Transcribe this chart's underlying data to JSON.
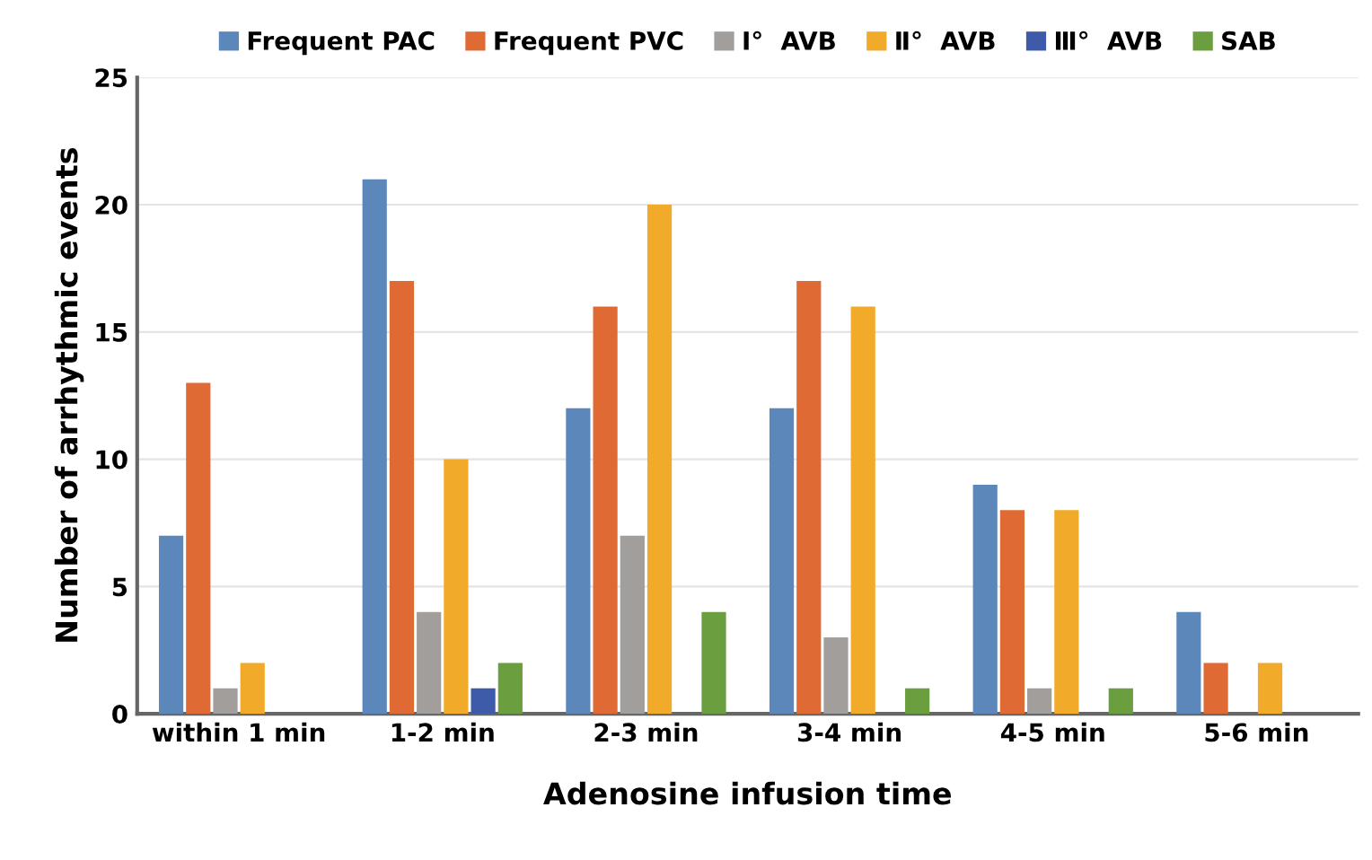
{
  "chart_data": {
    "type": "bar",
    "xlabel": "Adenosine infusion time",
    "ylabel": "Number of arrhythmic events",
    "categories": [
      "within 1 min",
      "1-2 min",
      "2-3 min",
      "3-4 min",
      "4-5 min",
      "5-6 min"
    ],
    "series": [
      {
        "name": "Frequent PAC",
        "color": "#5b87bb",
        "values": [
          7,
          21,
          12,
          12,
          9,
          4
        ]
      },
      {
        "name": "Frequent PVC",
        "color": "#e06a34",
        "values": [
          13,
          17,
          16,
          17,
          8,
          2
        ]
      },
      {
        "name": "Ⅰ°  AVB",
        "color": "#a29e9c",
        "values": [
          1,
          4,
          7,
          3,
          1,
          0
        ]
      },
      {
        "name": "Ⅱ°  AVB",
        "color": "#f2aa2a",
        "values": [
          2,
          10,
          20,
          16,
          8,
          2
        ]
      },
      {
        "name": "Ⅲ°  AVB",
        "color": "#3d5ba8",
        "values": [
          0,
          1,
          0,
          0,
          0,
          0
        ]
      },
      {
        "name": "SAB",
        "color": "#6a9e3e",
        "values": [
          0,
          2,
          4,
          1,
          1,
          0
        ]
      }
    ],
    "ylim": [
      0,
      25
    ],
    "yticks": [
      0,
      5,
      10,
      15,
      20,
      25
    ],
    "grid": "y",
    "legend": "top"
  }
}
